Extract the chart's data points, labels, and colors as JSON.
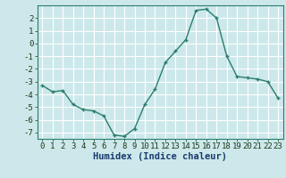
{
  "x": [
    0,
    1,
    2,
    3,
    4,
    5,
    6,
    7,
    8,
    9,
    10,
    11,
    12,
    13,
    14,
    15,
    16,
    17,
    18,
    19,
    20,
    21,
    22,
    23
  ],
  "y": [
    -3.3,
    -3.8,
    -3.7,
    -4.8,
    -5.2,
    -5.3,
    -5.7,
    -7.2,
    -7.3,
    -6.7,
    -4.8,
    -3.6,
    -1.5,
    -0.6,
    0.3,
    2.6,
    2.7,
    2.0,
    -1.0,
    -2.6,
    -2.7,
    -2.8,
    -3.0,
    -4.3
  ],
  "xlabel": "Humidex (Indice chaleur)",
  "ylabel": "",
  "ylim": [
    -7.5,
    3.0
  ],
  "xlim": [
    -0.5,
    23.5
  ],
  "line_color": "#2a7d6e",
  "marker": "+",
  "bg_color": "#cce8ea",
  "grid_color": "#ffffff",
  "tick_fontsize": 6.5,
  "label_fontsize": 7.5,
  "yticks": [
    -7,
    -6,
    -5,
    -4,
    -3,
    -2,
    -1,
    0,
    1,
    2
  ]
}
